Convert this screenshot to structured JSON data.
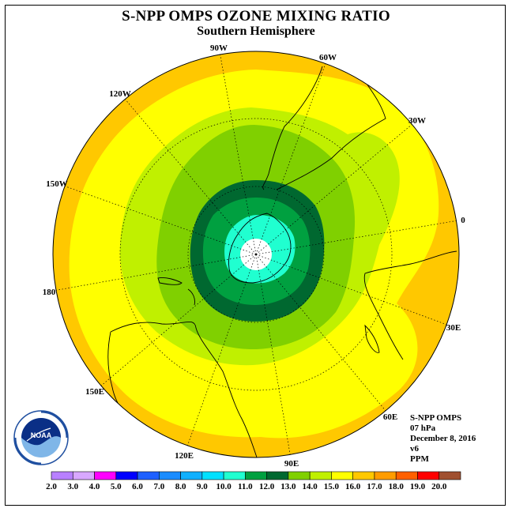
{
  "title": "S-NPP OMPS OZONE MIXING RATIO",
  "subtitle": "Southern Hemisphere",
  "longitude_labels": [
    "90W",
    "60W",
    "30W",
    "0",
    "30E",
    "60E",
    "90E",
    "120E",
    "150E",
    "180",
    "150W",
    "120W"
  ],
  "info": {
    "instrument": "S-NPP OMPS",
    "level": "07 hPa",
    "date": "December 8, 2016",
    "version": "v6",
    "units": "PPM"
  },
  "logo_text": "NOAA",
  "colorbar": {
    "ticks": [
      "2.0",
      "3.0",
      "4.0",
      "5.0",
      "6.0",
      "7.0",
      "8.0",
      "9.0",
      "10.0",
      "11.0",
      "12.0",
      "13.0",
      "14.0",
      "15.0",
      "16.0",
      "17.0",
      "18.0",
      "19.0",
      "20.0"
    ],
    "colors": [
      "#b880ff",
      "#d8a8ff",
      "#ff00ff",
      "#0000ff",
      "#1e60ff",
      "#1a8cff",
      "#10b0ff",
      "#00e0ff",
      "#20ffd0",
      "#00a040",
      "#006830",
      "#80d000",
      "#c0f000",
      "#ffff00",
      "#ffc800",
      "#ff9c00",
      "#ff6000",
      "#ff0000",
      "#a05030"
    ]
  },
  "map_fill_colors": {
    "outer": "#ffc800",
    "band15": "#ffff00",
    "band14": "#c0f000",
    "band13": "#80d000",
    "band12": "#006830",
    "band11": "#00a040",
    "band10": "#20ffd0",
    "pole": "#ffffff"
  }
}
